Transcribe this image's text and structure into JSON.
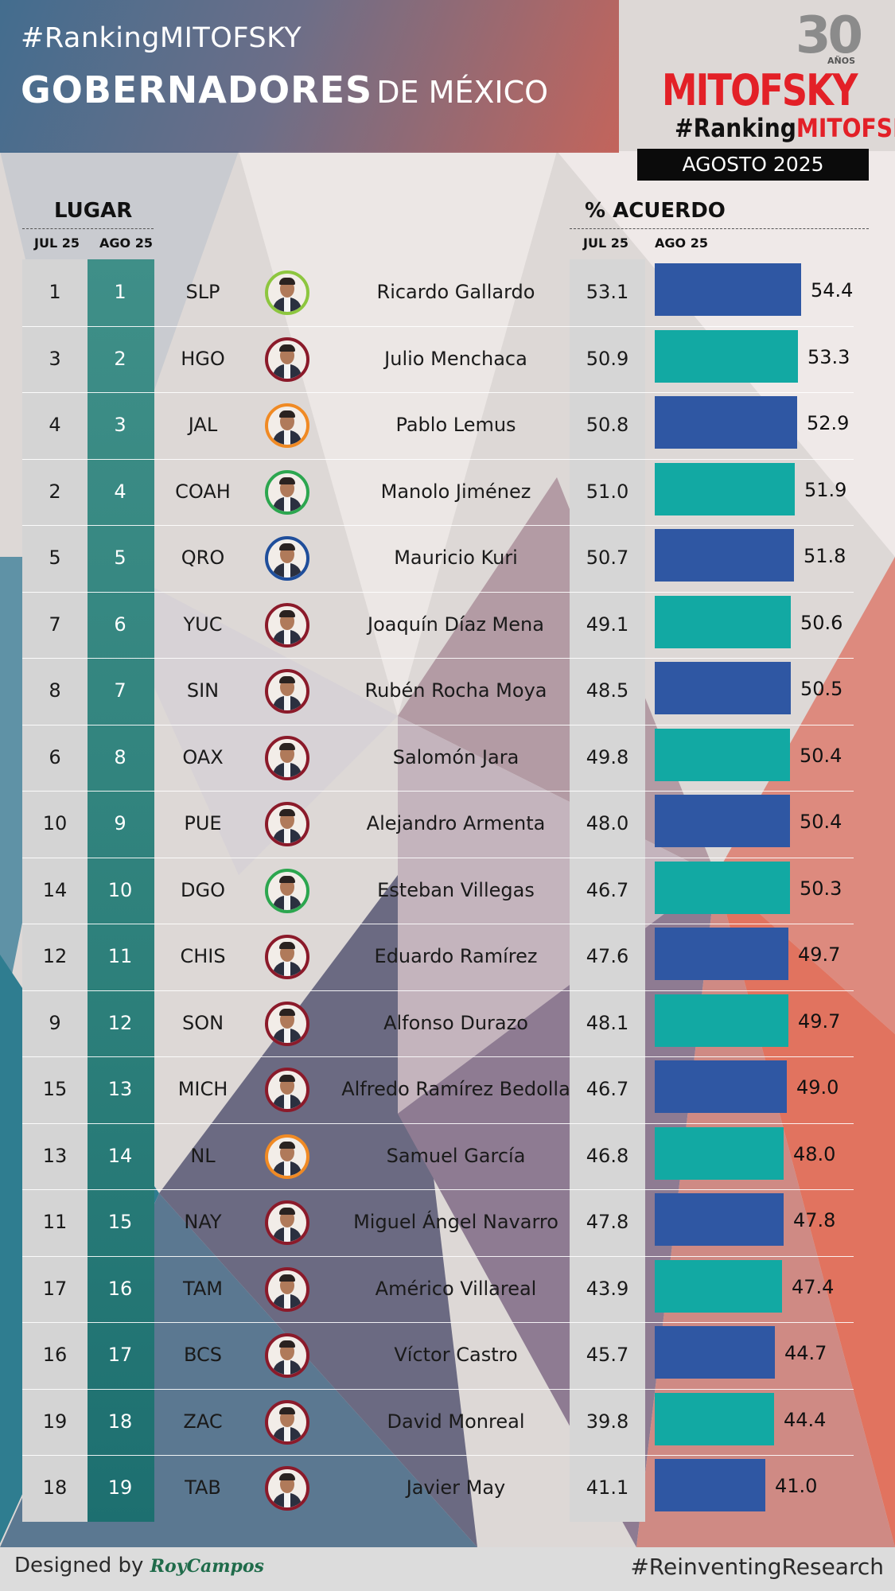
{
  "header": {
    "hashtag": "#RankingMITOFSKY",
    "title_main": "GOBERNADORES",
    "title_rest": "DE MÉXICO"
  },
  "logo": {
    "anniversary_number": "30",
    "anniversary_label": "AÑOS",
    "brand": "MITOFSKY",
    "ranking_prefix": "#Ranking",
    "ranking_brand": "MITOFSKY",
    "period": "AGOSTO  2025"
  },
  "columns": {
    "rank_header": "LUGAR",
    "rank_prev": "JUL 25",
    "rank_curr": "AGO 25",
    "approval_header": "% ACUERDO",
    "approval_prev": "JUL 25",
    "approval_curr": "AGO 25"
  },
  "colors": {
    "bar_blue": "#2f57a3",
    "bar_teal": "#12a9a3",
    "rank_column": "#2d7f7b",
    "brand_red": "#e32027"
  },
  "chart_data": {
    "type": "bar",
    "orientation": "horizontal",
    "series": [
      {
        "name": "JUL 25",
        "values": [
          53.1,
          50.9,
          50.8,
          51.0,
          50.7,
          49.1,
          48.5,
          49.8,
          48.0,
          46.7,
          47.6,
          48.1,
          46.7,
          46.8,
          47.8,
          43.9,
          45.7,
          39.8,
          41.1
        ]
      },
      {
        "name": "AGO 25",
        "values": [
          54.4,
          53.3,
          52.9,
          51.9,
          51.8,
          50.6,
          50.5,
          50.4,
          50.4,
          50.3,
          49.7,
          49.7,
          49.0,
          48.0,
          47.8,
          47.4,
          44.7,
          44.4,
          41.0
        ]
      }
    ],
    "rows": [
      {
        "jul_rank": "1",
        "ago_rank": "1",
        "state": "SLP",
        "name": "Ricardo Gallardo",
        "jul_pct": "53.1",
        "ago_pct": "54.4",
        "ring": "#8dc63f"
      },
      {
        "jul_rank": "3",
        "ago_rank": "2",
        "state": "HGO",
        "name": "Julio Menchaca",
        "jul_pct": "50.9",
        "ago_pct": "53.3",
        "ring": "#8b1a2a"
      },
      {
        "jul_rank": "4",
        "ago_rank": "3",
        "state": "JAL",
        "name": "Pablo Lemus",
        "jul_pct": "50.8",
        "ago_pct": "52.9",
        "ring": "#f08a24"
      },
      {
        "jul_rank": "2",
        "ago_rank": "4",
        "state": "COAH",
        "name": "Manolo Jiménez",
        "jul_pct": "51.0",
        "ago_pct": "51.9",
        "ring": "#2ca64f"
      },
      {
        "jul_rank": "5",
        "ago_rank": "5",
        "state": "QRO",
        "name": "Mauricio Kuri",
        "jul_pct": "50.7",
        "ago_pct": "51.8",
        "ring": "#1f4e9b"
      },
      {
        "jul_rank": "7",
        "ago_rank": "6",
        "state": "YUC",
        "name": "Joaquín Díaz Mena",
        "jul_pct": "49.1",
        "ago_pct": "50.6",
        "ring": "#8b1a2a"
      },
      {
        "jul_rank": "8",
        "ago_rank": "7",
        "state": "SIN",
        "name": "Rubén Rocha Moya",
        "jul_pct": "48.5",
        "ago_pct": "50.5",
        "ring": "#8b1a2a"
      },
      {
        "jul_rank": "6",
        "ago_rank": "8",
        "state": "OAX",
        "name": "Salomón Jara",
        "jul_pct": "49.8",
        "ago_pct": "50.4",
        "ring": "#8b1a2a"
      },
      {
        "jul_rank": "10",
        "ago_rank": "9",
        "state": "PUE",
        "name": "Alejandro Armenta",
        "jul_pct": "48.0",
        "ago_pct": "50.4",
        "ring": "#8b1a2a"
      },
      {
        "jul_rank": "14",
        "ago_rank": "10",
        "state": "DGO",
        "name": "Esteban Villegas",
        "jul_pct": "46.7",
        "ago_pct": "50.3",
        "ring": "#2ca64f"
      },
      {
        "jul_rank": "12",
        "ago_rank": "11",
        "state": "CHIS",
        "name": "Eduardo Ramírez",
        "jul_pct": "47.6",
        "ago_pct": "49.7",
        "ring": "#8b1a2a"
      },
      {
        "jul_rank": "9",
        "ago_rank": "12",
        "state": "SON",
        "name": "Alfonso Durazo",
        "jul_pct": "48.1",
        "ago_pct": "49.7",
        "ring": "#8b1a2a"
      },
      {
        "jul_rank": "15",
        "ago_rank": "13",
        "state": "MICH",
        "name": "Alfredo Ramírez Bedolla",
        "jul_pct": "46.7",
        "ago_pct": "49.0",
        "ring": "#8b1a2a"
      },
      {
        "jul_rank": "13",
        "ago_rank": "14",
        "state": "NL",
        "name": "Samuel García",
        "jul_pct": "46.8",
        "ago_pct": "48.0",
        "ring": "#f08a24"
      },
      {
        "jul_rank": "11",
        "ago_rank": "15",
        "state": "NAY",
        "name": "Miguel Ángel Navarro",
        "jul_pct": "47.8",
        "ago_pct": "47.8",
        "ring": "#8b1a2a"
      },
      {
        "jul_rank": "17",
        "ago_rank": "16",
        "state": "TAM",
        "name": "Américo Villareal",
        "jul_pct": "43.9",
        "ago_pct": "47.4",
        "ring": "#8b1a2a"
      },
      {
        "jul_rank": "16",
        "ago_rank": "17",
        "state": "BCS",
        "name": "Víctor Castro",
        "jul_pct": "45.7",
        "ago_pct": "44.7",
        "ring": "#8b1a2a"
      },
      {
        "jul_rank": "19",
        "ago_rank": "18",
        "state": "ZAC",
        "name": "David Monreal",
        "jul_pct": "39.8",
        "ago_pct": "44.4",
        "ring": "#8b1a2a"
      },
      {
        "jul_rank": "18",
        "ago_rank": "19",
        "state": "TAB",
        "name": "Javier May",
        "jul_pct": "41.1",
        "ago_pct": "41.0",
        "ring": "#8b1a2a"
      }
    ]
  },
  "footer": {
    "designed_by": "Designed by ",
    "author": "RoyCampos",
    "tagline": "#ReinventingResearch"
  }
}
